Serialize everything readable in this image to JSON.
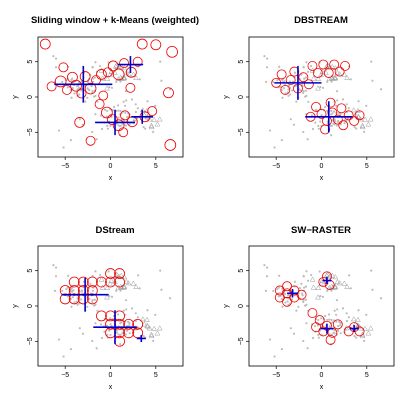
{
  "chart_data": [
    {
      "type": "scatter",
      "title": "Sliding window + k-Means (weighted)",
      "xlabel": "x",
      "ylabel": "y",
      "xlim": [
        -8,
        8
      ],
      "ylim": [
        -8.5,
        8.5
      ],
      "x_ticks": [
        -5,
        0,
        5
      ],
      "x_tick_labels": [
        "−5",
        "0",
        "5"
      ],
      "y_ticks": [
        -5,
        0,
        5
      ],
      "y_tick_labels": [
        "−5",
        "0",
        "5"
      ],
      "colors": {
        "micro": "#ee0000",
        "macro": "#0000cc",
        "points": "#bdbdbd"
      },
      "micro_clusters": [
        [
          -7.2,
          7.5,
          0.55
        ],
        [
          -6.5,
          1.5,
          0.5
        ],
        [
          -5.5,
          2.2,
          0.6
        ],
        [
          -4.8,
          1.0,
          0.5
        ],
        [
          -4.2,
          2.8,
          0.55
        ],
        [
          -3.8,
          1.6,
          0.6
        ],
        [
          -3.2,
          0.5,
          0.5
        ],
        [
          -2.8,
          2.9,
          0.55
        ],
        [
          -2.2,
          1.2,
          0.6
        ],
        [
          -1.6,
          2.4,
          0.5
        ],
        [
          -1.0,
          3.2,
          0.55
        ],
        [
          -0.3,
          3.5,
          0.5
        ],
        [
          0.3,
          4.4,
          0.55
        ],
        [
          0.9,
          3.2,
          0.6
        ],
        [
          1.5,
          4.8,
          0.5
        ],
        [
          2.3,
          3.5,
          0.55
        ],
        [
          3.0,
          5.0,
          0.5
        ],
        [
          3.5,
          7.5,
          0.55
        ],
        [
          5.0,
          7.4,
          0.55
        ],
        [
          6.8,
          6.4,
          0.6
        ],
        [
          6.4,
          0.6,
          0.55
        ],
        [
          -1.2,
          -1.0,
          0.5
        ],
        [
          -0.4,
          -2.2,
          0.6
        ],
        [
          0.2,
          -3.2,
          0.55
        ],
        [
          0.9,
          -4.0,
          0.6
        ],
        [
          1.6,
          -2.6,
          0.5
        ],
        [
          2.4,
          -3.5,
          0.55
        ],
        [
          1.4,
          -5.0,
          0.5
        ],
        [
          3.8,
          -2.8,
          0.55
        ],
        [
          4.6,
          -2.0,
          0.5
        ],
        [
          -3.4,
          -3.6,
          0.55
        ],
        [
          -2.2,
          -6.2,
          0.5
        ],
        [
          6.6,
          -6.8,
          0.6
        ],
        [
          -0.8,
          0.2,
          0.5
        ],
        [
          2.2,
          1.3,
          0.5
        ],
        [
          -5.2,
          4.2,
          0.5
        ]
      ],
      "macro_clusters": [
        [
          -3.0,
          1.8,
          3.2,
          2.6
        ],
        [
          2.2,
          4.6,
          1.4,
          1.2
        ],
        [
          0.5,
          -3.6,
          2.2,
          1.8
        ],
        [
          3.5,
          -2.8,
          1.2,
          1.0
        ]
      ]
    },
    {
      "type": "scatter",
      "title": "DBSTREAM",
      "xlabel": "x",
      "ylabel": "y",
      "xlim": [
        -8,
        8
      ],
      "ylim": [
        -8.5,
        8.5
      ],
      "x_ticks": [
        -5,
        0,
        5
      ],
      "x_tick_labels": [
        "−5",
        "0",
        "5"
      ],
      "y_ticks": [
        -5,
        0,
        5
      ],
      "y_tick_labels": [
        "−5",
        "0",
        "5"
      ],
      "colors": {
        "micro": "#ee0000",
        "macro": "#0000cc",
        "points": "#bdbdbd"
      },
      "micro_clusters": [
        [
          -5.0,
          2.0,
          0.5
        ],
        [
          -4.4,
          3.2,
          0.5
        ],
        [
          -4.0,
          1.0,
          0.5
        ],
        [
          -3.4,
          2.4,
          0.5
        ],
        [
          -3.0,
          3.6,
          0.5
        ],
        [
          -2.6,
          1.2,
          0.5
        ],
        [
          -2.0,
          2.8,
          0.5
        ],
        [
          -1.4,
          1.8,
          0.5
        ],
        [
          -1.0,
          4.4,
          0.5
        ],
        [
          -0.4,
          3.4,
          0.5
        ],
        [
          0.2,
          4.6,
          0.5
        ],
        [
          0.8,
          3.4,
          0.5
        ],
        [
          1.4,
          4.6,
          0.5
        ],
        [
          2.0,
          3.6,
          0.5
        ],
        [
          2.6,
          4.4,
          0.5
        ],
        [
          -0.6,
          -1.4,
          0.5
        ],
        [
          0.0,
          -2.4,
          0.5
        ],
        [
          0.6,
          -3.4,
          0.5
        ],
        [
          1.2,
          -2.2,
          0.5
        ],
        [
          1.8,
          -3.2,
          0.5
        ],
        [
          2.4,
          -4.0,
          0.5
        ],
        [
          0.4,
          -4.6,
          0.5
        ],
        [
          3.0,
          -2.6,
          0.5
        ],
        [
          3.6,
          -3.4,
          0.5
        ],
        [
          4.2,
          -2.6,
          0.5
        ],
        [
          -1.2,
          -2.8,
          0.5
        ],
        [
          1.0,
          -0.8,
          0.5
        ],
        [
          2.2,
          -1.6,
          0.5
        ]
      ],
      "macro_clusters": [
        [
          -2.6,
          2.0,
          2.6,
          2.4
        ],
        [
          0.8,
          -2.8,
          2.6,
          2.2
        ]
      ]
    },
    {
      "type": "scatter",
      "title": "DStream",
      "xlabel": "x",
      "ylabel": "y",
      "xlim": [
        -8,
        8
      ],
      "ylim": [
        -8.5,
        8.5
      ],
      "x_ticks": [
        -5,
        0,
        5
      ],
      "x_tick_labels": [
        "−5",
        "0",
        "5"
      ],
      "y_ticks": [
        -5,
        0,
        5
      ],
      "y_tick_labels": [
        "−5",
        "0",
        "5"
      ],
      "colors": {
        "micro": "#ee0000",
        "macro": "#0000cc",
        "points": "#bdbdbd"
      },
      "micro_clusters": [
        [
          -5.0,
          1.0,
          0.55
        ],
        [
          -5.0,
          2.2,
          0.55
        ],
        [
          -4.0,
          1.0,
          0.55
        ],
        [
          -4.0,
          2.2,
          0.55
        ],
        [
          -4.0,
          3.4,
          0.55
        ],
        [
          -3.0,
          1.0,
          0.55
        ],
        [
          -3.0,
          2.2,
          0.55
        ],
        [
          -3.0,
          3.4,
          0.55
        ],
        [
          -2.0,
          2.2,
          0.55
        ],
        [
          -2.0,
          3.4,
          0.55
        ],
        [
          -1.0,
          3.4,
          0.55
        ],
        [
          0.0,
          3.4,
          0.55
        ],
        [
          0.0,
          4.6,
          0.55
        ],
        [
          1.0,
          3.4,
          0.55
        ],
        [
          1.0,
          4.6,
          0.55
        ],
        [
          -1.0,
          -1.4,
          0.55
        ],
        [
          0.0,
          -1.4,
          0.55
        ],
        [
          0.0,
          -2.6,
          0.55
        ],
        [
          1.0,
          -2.6,
          0.55
        ],
        [
          1.0,
          -3.8,
          0.55
        ],
        [
          2.0,
          -2.6,
          0.55
        ],
        [
          2.0,
          -3.8,
          0.55
        ],
        [
          3.0,
          -3.8,
          0.55
        ],
        [
          0.0,
          -3.8,
          0.55
        ],
        [
          1.0,
          -5.0,
          0.55
        ],
        [
          3.0,
          -2.6,
          0.55
        ],
        [
          -2.0,
          1.0,
          0.55
        ],
        [
          1.0,
          -1.4,
          0.55
        ]
      ],
      "macro_clusters": [
        [
          -2.8,
          1.6,
          2.6,
          2.4
        ],
        [
          0.5,
          -3.0,
          2.4,
          2.4
        ],
        [
          3.4,
          -4.6,
          0.5,
          0.5
        ]
      ]
    },
    {
      "type": "scatter",
      "title": "SW−RASTER",
      "xlabel": "x",
      "ylabel": "y",
      "xlim": [
        -8,
        8
      ],
      "ylim": [
        -8.5,
        8.5
      ],
      "x_ticks": [
        -5,
        0,
        5
      ],
      "x_tick_labels": [
        "−5",
        "0",
        "5"
      ],
      "y_ticks": [
        -5,
        0,
        5
      ],
      "y_tick_labels": [
        "−5",
        "0",
        "5"
      ],
      "colors": {
        "micro": "#ee0000",
        "macro": "#0000cc",
        "points": "#bdbdbd"
      },
      "micro_clusters": [
        [
          -4.6,
          1.2,
          0.5
        ],
        [
          -4.6,
          2.2,
          0.5
        ],
        [
          -3.8,
          0.6,
          0.5
        ],
        [
          -3.8,
          1.8,
          0.5
        ],
        [
          -3.8,
          2.8,
          0.5
        ],
        [
          -3.0,
          1.2,
          0.5
        ],
        [
          -3.0,
          2.2,
          0.5
        ],
        [
          -2.2,
          1.6,
          0.5
        ],
        [
          0.2,
          3.4,
          0.5
        ],
        [
          0.6,
          4.2,
          0.5
        ],
        [
          0.9,
          3.0,
          0.5
        ],
        [
          -1.0,
          -1.0,
          0.5
        ],
        [
          -0.2,
          -2.0,
          0.5
        ],
        [
          0.6,
          -2.8,
          0.5
        ],
        [
          0.2,
          -3.6,
          0.5
        ],
        [
          1.2,
          -3.8,
          0.5
        ],
        [
          1.8,
          -2.6,
          0.5
        ],
        [
          1.0,
          -4.8,
          0.5
        ],
        [
          -0.6,
          -3.0,
          0.5
        ],
        [
          3.6,
          -3.0,
          0.5
        ],
        [
          4.2,
          -3.6,
          0.5
        ],
        [
          3.0,
          -3.6,
          0.5
        ]
      ],
      "macro_clusters": [
        [
          -3.2,
          1.8,
          0.6,
          0.6
        ],
        [
          0.6,
          3.6,
          0.5,
          0.5
        ],
        [
          0.6,
          -3.2,
          0.7,
          0.7
        ],
        [
          3.6,
          -3.2,
          0.5,
          0.5
        ]
      ]
    }
  ]
}
